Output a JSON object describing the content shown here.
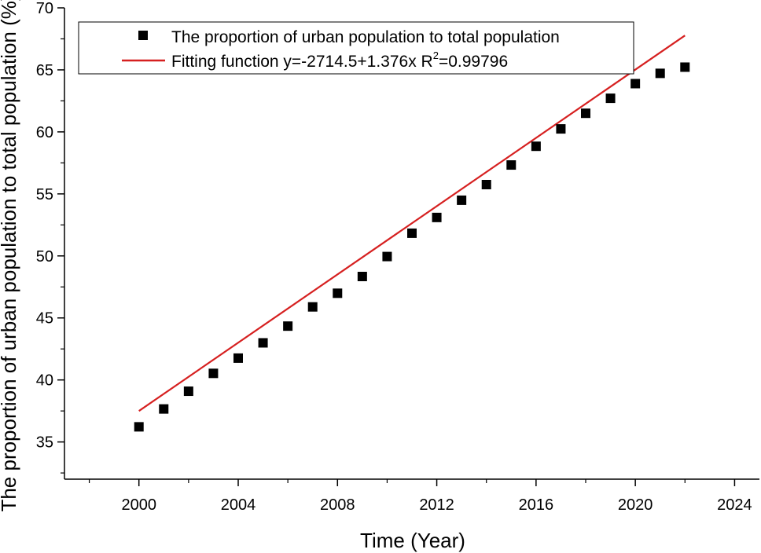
{
  "chart_data": {
    "type": "scatter",
    "xlabel": "Time (Year)",
    "ylabel": "The proportion of urban population to total population (%)",
    "xlim": [
      1997,
      2025
    ],
    "ylim": [
      32,
      70
    ],
    "x_ticks": [
      2000,
      2004,
      2008,
      2012,
      2016,
      2020,
      2024
    ],
    "y_ticks": [
      35,
      40,
      45,
      50,
      55,
      60,
      65,
      70
    ],
    "series": [
      {
        "name": "The proportion of urban population to total population",
        "kind": "scatter",
        "marker": "square",
        "color": "#000000",
        "x": [
          2000,
          2001,
          2002,
          2003,
          2004,
          2005,
          2006,
          2007,
          2008,
          2009,
          2010,
          2011,
          2012,
          2013,
          2014,
          2015,
          2016,
          2017,
          2018,
          2019,
          2020,
          2021,
          2022
        ],
        "y": [
          36.22,
          37.66,
          39.09,
          40.53,
          41.76,
          42.99,
          44.34,
          45.89,
          46.99,
          48.34,
          49.95,
          51.83,
          53.1,
          54.49,
          55.75,
          57.33,
          58.84,
          60.24,
          61.5,
          62.71,
          63.89,
          64.72,
          65.22
        ]
      },
      {
        "name": "Fitting function",
        "kind": "line",
        "color": "#d62020",
        "intercept": -2714.5,
        "slope": 1.376,
        "x_range": [
          2000,
          2022
        ]
      }
    ],
    "legend": {
      "position": "top-left",
      "scatter_label": "The proportion of urban population to total population",
      "fit_label_prefix": "Fitting function  y=-2714.5+1.376x R",
      "fit_label_sup": "2",
      "fit_label_suffix": "=0.99796"
    }
  }
}
